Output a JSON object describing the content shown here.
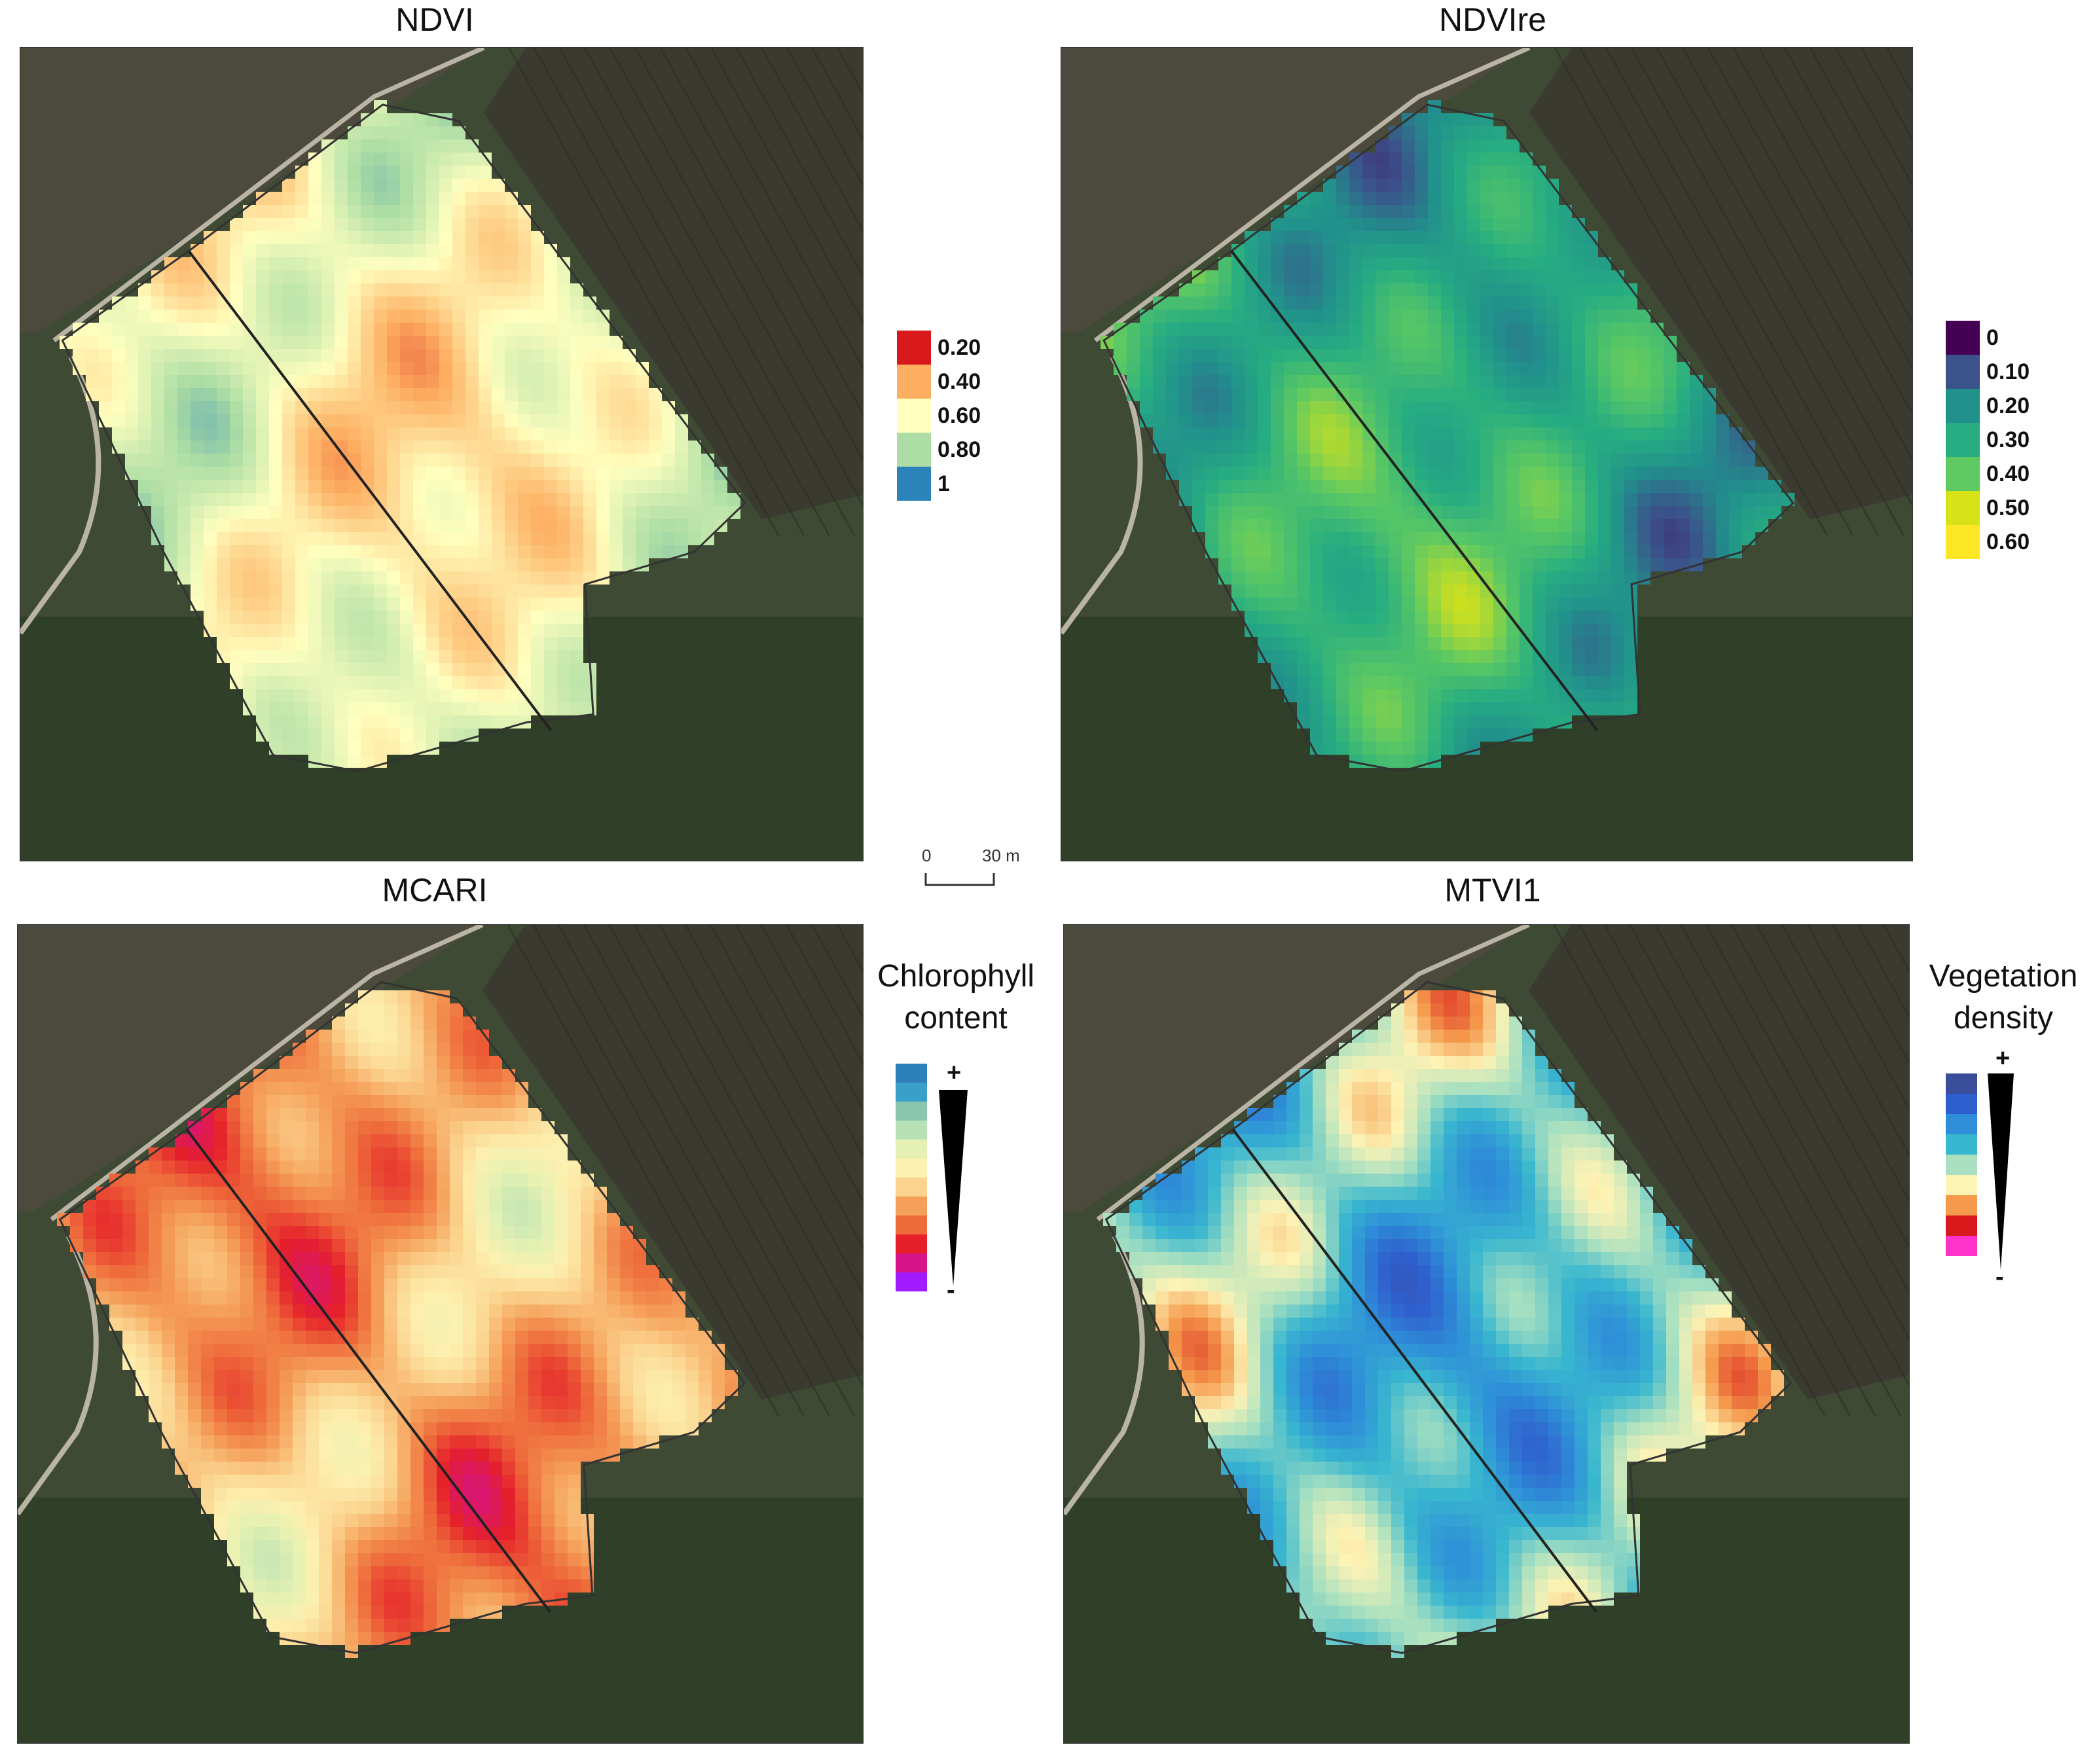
{
  "panels": [
    {
      "id": "ndvi",
      "title": "NDVI",
      "palette": [
        "#d7191c",
        "#fdae61",
        "#ffffbf",
        "#abdda4",
        "#2b83ba"
      ],
      "legend_labels": [
        "0.20",
        "0.40",
        "0.60",
        "0.80",
        "1"
      ]
    },
    {
      "id": "ndvire",
      "title": "NDVIre",
      "palette": [
        "#440154",
        "#3b528b",
        "#21918c",
        "#27ad81",
        "#5ec962",
        "#d8e219",
        "#fde725"
      ],
      "legend_labels": [
        "0",
        "0.10",
        "0.20",
        "0.30",
        "0.40",
        "0.50",
        "0.60"
      ]
    },
    {
      "id": "mcari",
      "title": "MCARI",
      "legend_title": [
        "Chlorophyll",
        "content"
      ],
      "plus": "+",
      "minus": "-",
      "palette": [
        "#a01bff",
        "#d6138a",
        "#e5202a",
        "#ee6b3b",
        "#f5a05a",
        "#fbd38e",
        "#fdf0b0",
        "#e4f1b2",
        "#b8e0b5",
        "#8ac6ae",
        "#3aa0c8",
        "#2c7fb8"
      ]
    },
    {
      "id": "mtvi1",
      "title": "MTVI1",
      "legend_title": [
        "Vegetation",
        "density"
      ],
      "plus": "+",
      "minus": "-",
      "palette": [
        "#ff33cc",
        "#d7191c",
        "#f59a4c",
        "#fdf3b5",
        "#a8e0c0",
        "#39b7cf",
        "#2e8fd8",
        "#2f5fce",
        "#3a4d9a"
      ]
    }
  ],
  "scalebar": {
    "zero": "0",
    "end": "30 m"
  }
}
